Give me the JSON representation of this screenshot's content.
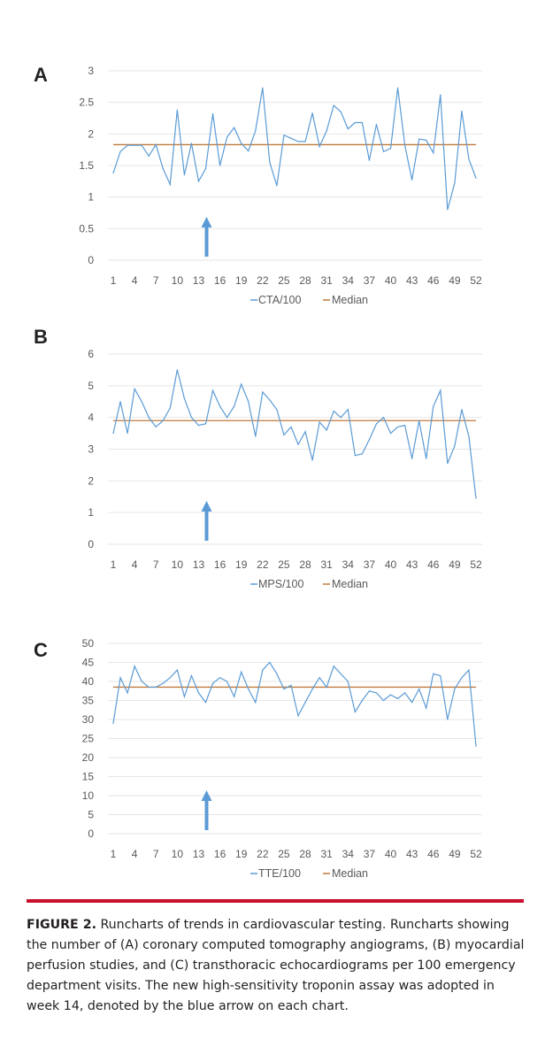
{
  "colors": {
    "series": "#5b9bd5",
    "median": "#c07a3c",
    "arrow": "#5b9bd5",
    "rule": "#c8102e"
  },
  "chart_data": [
    {
      "type": "line",
      "panel": "A",
      "ylim": [
        0,
        3
      ],
      "yticks": [
        "0",
        "0.5",
        "1",
        "1.5",
        "2",
        "2.5",
        "3"
      ],
      "ytick_values": [
        0,
        0.5,
        1,
        1.5,
        2,
        2.5,
        3
      ],
      "xticks": [
        "1",
        "4",
        "7",
        "10",
        "13",
        "16",
        "19",
        "22",
        "25",
        "28",
        "31",
        "34",
        "37",
        "40",
        "43",
        "46",
        "49",
        "52"
      ],
      "legend": [
        "CTA/100",
        "Median"
      ],
      "median": 1.83,
      "arrow_week": 14,
      "values": [
        1.38,
        1.72,
        1.82,
        1.82,
        1.82,
        1.65,
        1.83,
        1.45,
        1.2,
        2.38,
        1.35,
        1.85,
        1.25,
        1.45,
        2.32,
        1.5,
        1.95,
        2.1,
        1.85,
        1.73,
        2.05,
        2.73,
        1.55,
        1.18,
        1.98,
        1.93,
        1.88,
        1.88,
        2.33,
        1.8,
        2.05,
        2.45,
        2.35,
        2.08,
        2.18,
        2.18,
        1.58,
        2.15,
        1.72,
        1.77,
        2.73,
        1.82,
        1.27,
        1.92,
        1.9,
        1.7,
        2.62,
        0.8,
        1.22,
        2.36,
        1.6,
        1.3
      ]
    },
    {
      "type": "line",
      "panel": "B",
      "ylim": [
        0,
        6
      ],
      "yticks": [
        "0",
        "1",
        "2",
        "3",
        "4",
        "5",
        "6"
      ],
      "ytick_values": [
        0,
        1,
        2,
        3,
        4,
        5,
        6
      ],
      "xticks": [
        "1",
        "4",
        "7",
        "10",
        "13",
        "16",
        "19",
        "22",
        "25",
        "28",
        "31",
        "34",
        "37",
        "40",
        "43",
        "46",
        "49",
        "52"
      ],
      "legend": [
        "MPS/100",
        "Median"
      ],
      "median": 3.9,
      "arrow_week": 14,
      "values": [
        3.5,
        4.5,
        3.5,
        4.9,
        4.5,
        4.0,
        3.7,
        3.9,
        4.3,
        5.5,
        4.6,
        4.0,
        3.75,
        3.8,
        4.85,
        4.35,
        4.0,
        4.35,
        5.05,
        4.5,
        3.4,
        4.8,
        4.55,
        4.25,
        3.45,
        3.7,
        3.15,
        3.55,
        2.65,
        3.85,
        3.6,
        4.2,
        4.0,
        4.25,
        2.8,
        2.85,
        3.3,
        3.8,
        4.0,
        3.5,
        3.7,
        3.75,
        2.7,
        3.9,
        2.7,
        4.35,
        4.85,
        2.55,
        3.1,
        4.25,
        3.4,
        1.45
      ]
    },
    {
      "type": "line",
      "panel": "C",
      "ylim": [
        0,
        50
      ],
      "yticks": [
        "0",
        "5",
        "10",
        "15",
        "20",
        "25",
        "30",
        "35",
        "40",
        "45",
        "50"
      ],
      "ytick_values": [
        0,
        5,
        10,
        15,
        20,
        25,
        30,
        35,
        40,
        45,
        50
      ],
      "xticks": [
        "1",
        "4",
        "7",
        "10",
        "13",
        "16",
        "19",
        "22",
        "25",
        "28",
        "31",
        "34",
        "37",
        "40",
        "43",
        "46",
        "49",
        "52"
      ],
      "legend": [
        "TTE/100",
        "Median"
      ],
      "median": 38.5,
      "arrow_week": 14,
      "values": [
        29,
        41,
        37,
        44,
        40,
        38.5,
        38.5,
        39.5,
        41,
        43,
        36,
        41.5,
        37,
        34.5,
        39.5,
        41,
        40,
        36,
        42.5,
        38,
        34.5,
        43,
        45,
        42,
        38,
        39,
        31,
        34.5,
        38,
        41,
        38.5,
        44,
        42,
        40,
        32,
        35,
        37.5,
        37,
        35,
        36.5,
        35.5,
        37,
        34.5,
        38,
        33,
        42,
        41.5,
        30,
        38,
        41,
        43,
        23
      ]
    }
  ],
  "caption": {
    "label": "FIGURE 2.",
    "text": " Runcharts of trends in cardiovascular testing. Runcharts showing the number of (A) coronary computed tomography angiograms, (B) myocardial perfusion studies, and (C) transthoracic echocardiograms per 100 emergency department visits. The new high-sensitivity troponin assay was adopted in week 14, denoted by the blue arrow on each chart."
  }
}
